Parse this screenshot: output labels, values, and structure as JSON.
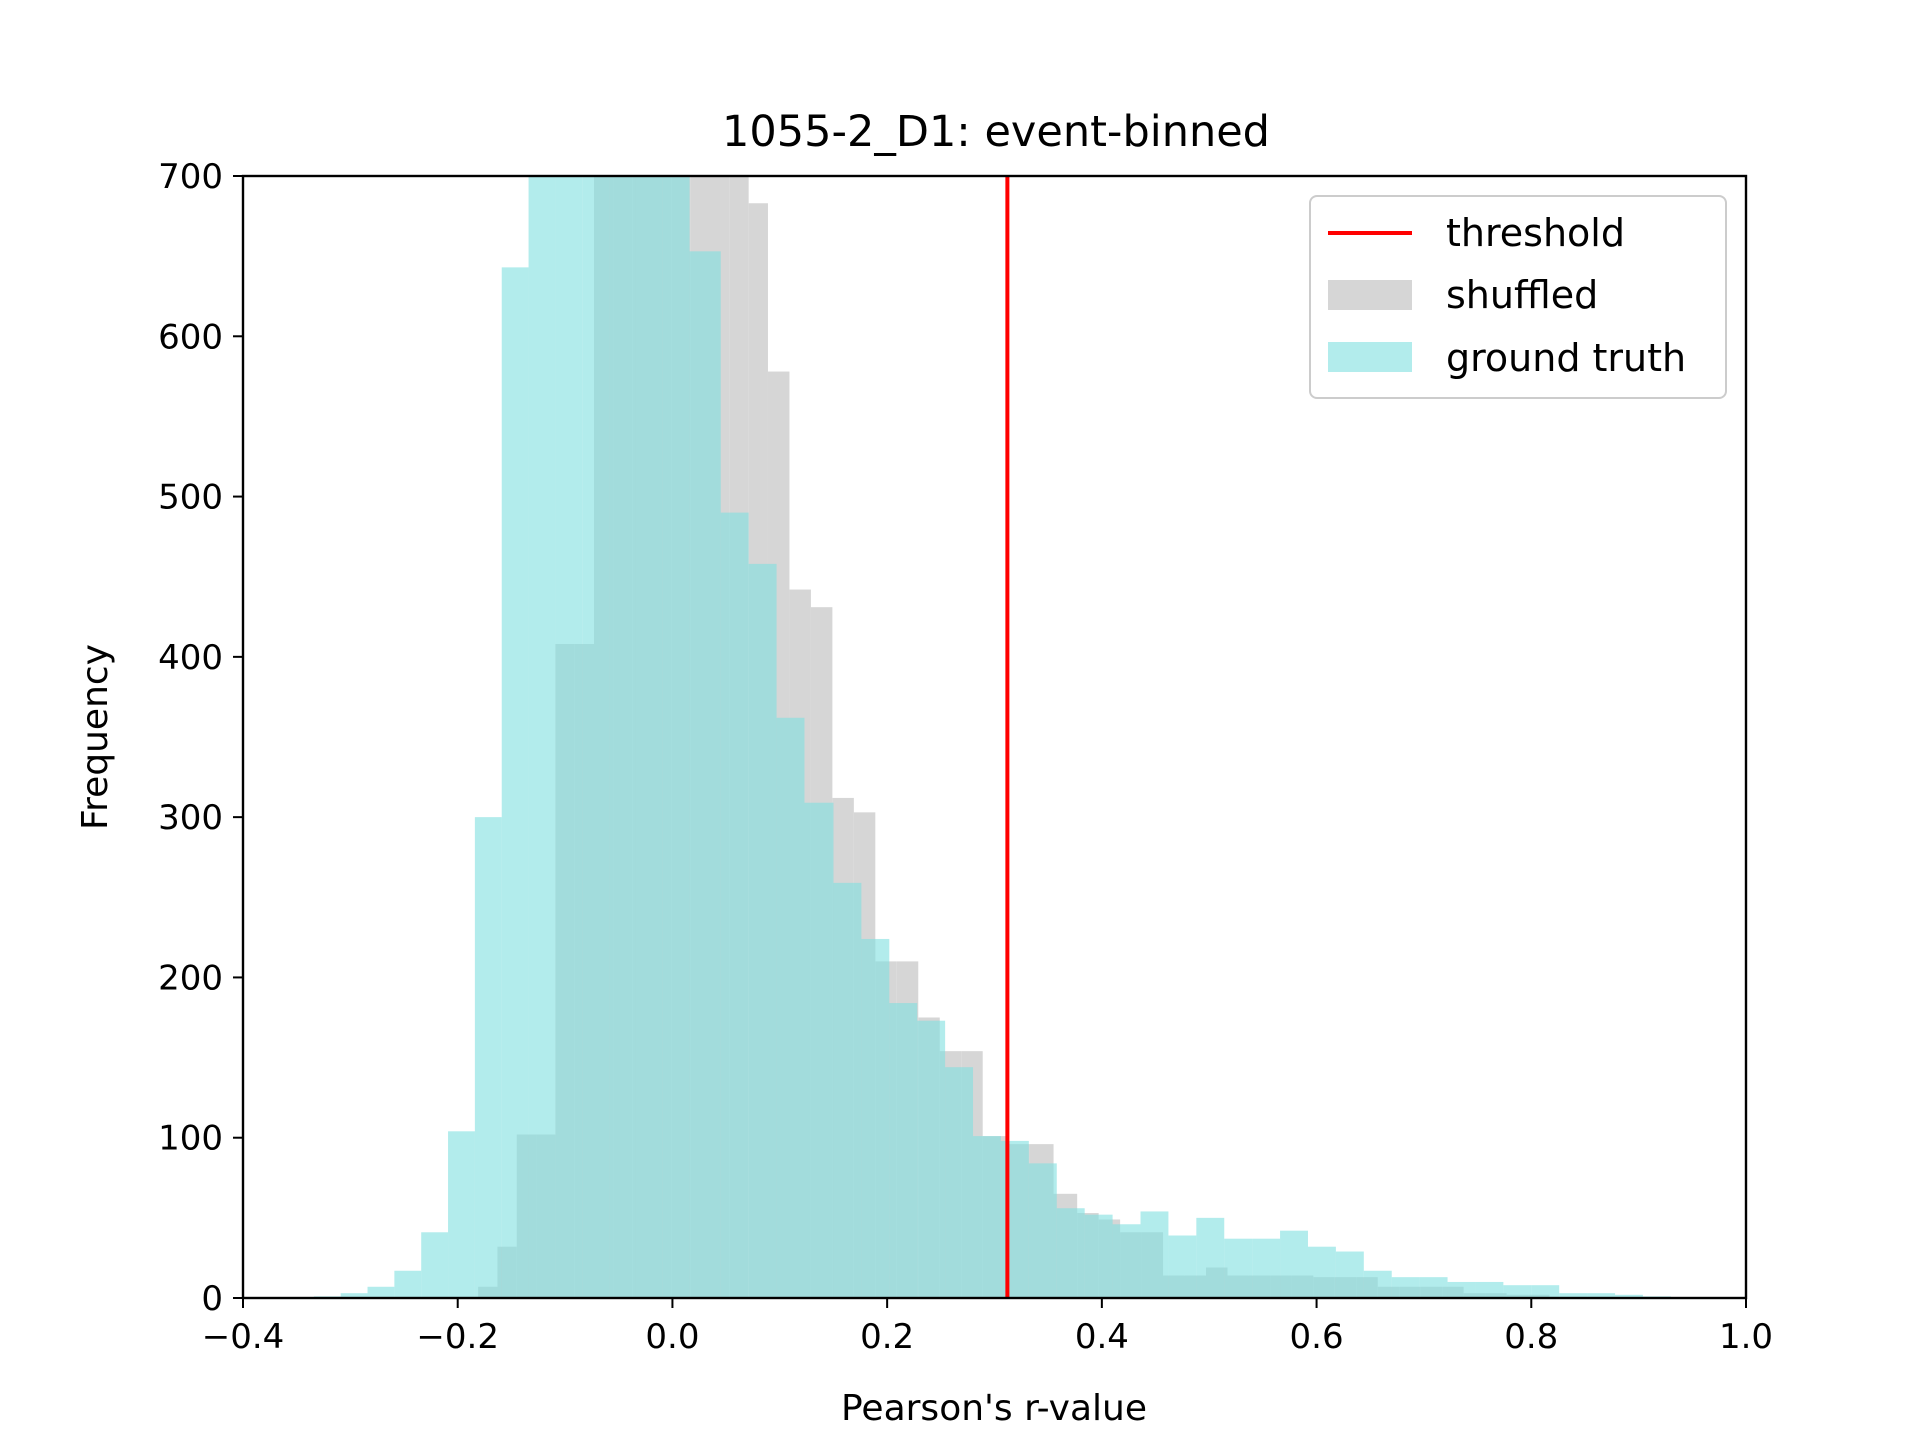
{
  "chart_data": {
    "type": "bar",
    "title": "1055-2_D1: event-binned",
    "xlabel": "Pearson's r-value",
    "ylabel": "Frequency",
    "xlim": [
      -0.4,
      1.0
    ],
    "ylim": [
      0,
      700
    ],
    "xticks": [
      -0.4,
      -0.2,
      0.0,
      0.2,
      0.4,
      0.6,
      0.8,
      1.0
    ],
    "xtick_labels": [
      "−0.4",
      "−0.2",
      "0.0",
      "0.2",
      "0.4",
      "0.6",
      "0.8",
      "1.0"
    ],
    "yticks": [
      0,
      100,
      200,
      300,
      400,
      500,
      600,
      700
    ],
    "ytick_labels": [
      "0",
      "100",
      "200",
      "300",
      "400",
      "500",
      "600",
      "700"
    ],
    "grid": false,
    "legend_position": "top-right",
    "threshold": {
      "name": "threshold",
      "x": 0.312,
      "color": "#ff0000"
    },
    "series": [
      {
        "name": "shuffled",
        "color": "#d6d6d6",
        "bins": [
          {
            "x0": -0.181,
            "x1": -0.163,
            "value": 7
          },
          {
            "x0": -0.163,
            "x1": -0.145,
            "value": 32
          },
          {
            "x0": -0.145,
            "x1": -0.127,
            "value": 102
          },
          {
            "x0": -0.127,
            "x1": -0.109,
            "value": 102
          },
          {
            "x0": -0.109,
            "x1": -0.091,
            "value": 408
          },
          {
            "x0": -0.091,
            "x1": -0.073,
            "value": 408
          },
          {
            "x0": -0.073,
            "x1": -0.055,
            "value": 700
          },
          {
            "x0": -0.055,
            "x1": -0.037,
            "value": 700
          },
          {
            "x0": -0.037,
            "x1": -0.019,
            "value": 700
          },
          {
            "x0": -0.019,
            "x1": -0.001,
            "value": 700
          },
          {
            "x0": -0.001,
            "x1": 0.017,
            "value": 700
          },
          {
            "x0": 0.017,
            "x1": 0.035,
            "value": 700
          },
          {
            "x0": 0.035,
            "x1": 0.053,
            "value": 700
          },
          {
            "x0": 0.053,
            "x1": 0.071,
            "value": 700
          },
          {
            "x0": 0.071,
            "x1": 0.089,
            "value": 683
          },
          {
            "x0": 0.089,
            "x1": 0.109,
            "value": 578
          },
          {
            "x0": 0.109,
            "x1": 0.129,
            "value": 442
          },
          {
            "x0": 0.129,
            "x1": 0.149,
            "value": 431
          },
          {
            "x0": 0.149,
            "x1": 0.169,
            "value": 312
          },
          {
            "x0": 0.169,
            "x1": 0.189,
            "value": 303
          },
          {
            "x0": 0.189,
            "x1": 0.209,
            "value": 210
          },
          {
            "x0": 0.209,
            "x1": 0.229,
            "value": 210
          },
          {
            "x0": 0.229,
            "x1": 0.249,
            "value": 175
          },
          {
            "x0": 0.249,
            "x1": 0.269,
            "value": 154
          },
          {
            "x0": 0.269,
            "x1": 0.289,
            "value": 154
          },
          {
            "x0": 0.289,
            "x1": 0.311,
            "value": 101
          },
          {
            "x0": 0.311,
            "x1": 0.333,
            "value": 96
          },
          {
            "x0": 0.333,
            "x1": 0.355,
            "value": 96
          },
          {
            "x0": 0.355,
            "x1": 0.377,
            "value": 65
          },
          {
            "x0": 0.377,
            "x1": 0.397,
            "value": 53
          },
          {
            "x0": 0.397,
            "x1": 0.417,
            "value": 49
          },
          {
            "x0": 0.417,
            "x1": 0.437,
            "value": 41
          },
          {
            "x0": 0.437,
            "x1": 0.457,
            "value": 41
          },
          {
            "x0": 0.457,
            "x1": 0.477,
            "value": 14
          },
          {
            "x0": 0.477,
            "x1": 0.497,
            "value": 14
          },
          {
            "x0": 0.497,
            "x1": 0.517,
            "value": 19
          },
          {
            "x0": 0.517,
            "x1": 0.537,
            "value": 14
          },
          {
            "x0": 0.537,
            "x1": 0.557,
            "value": 14
          },
          {
            "x0": 0.557,
            "x1": 0.577,
            "value": 14
          },
          {
            "x0": 0.577,
            "x1": 0.597,
            "value": 14
          },
          {
            "x0": 0.597,
            "x1": 0.617,
            "value": 13
          },
          {
            "x0": 0.617,
            "x1": 0.637,
            "value": 13
          },
          {
            "x0": 0.637,
            "x1": 0.657,
            "value": 13
          },
          {
            "x0": 0.657,
            "x1": 0.677,
            "value": 7
          },
          {
            "x0": 0.677,
            "x1": 0.697,
            "value": 7
          },
          {
            "x0": 0.697,
            "x1": 0.717,
            "value": 7
          },
          {
            "x0": 0.717,
            "x1": 0.737,
            "value": 7
          },
          {
            "x0": 0.737,
            "x1": 0.757,
            "value": 3
          },
          {
            "x0": 0.757,
            "x1": 0.777,
            "value": 3
          },
          {
            "x0": 0.777,
            "x1": 0.797,
            "value": 2
          },
          {
            "x0": 0.797,
            "x1": 0.817,
            "value": 2
          }
        ]
      },
      {
        "name": "ground truth",
        "color": "#7fdfdf",
        "bins": [
          {
            "x0": -0.334,
            "x1": -0.309,
            "value": 1
          },
          {
            "x0": -0.309,
            "x1": -0.284,
            "value": 3
          },
          {
            "x0": -0.284,
            "x1": -0.259,
            "value": 7
          },
          {
            "x0": -0.259,
            "x1": -0.234,
            "value": 17
          },
          {
            "x0": -0.234,
            "x1": -0.209,
            "value": 41
          },
          {
            "x0": -0.209,
            "x1": -0.184,
            "value": 104
          },
          {
            "x0": -0.184,
            "x1": -0.159,
            "value": 300
          },
          {
            "x0": -0.159,
            "x1": -0.134,
            "value": 643
          },
          {
            "x0": -0.134,
            "x1": -0.109,
            "value": 700
          },
          {
            "x0": -0.109,
            "x1": -0.084,
            "value": 700
          },
          {
            "x0": -0.084,
            "x1": -0.059,
            "value": 700
          },
          {
            "x0": -0.059,
            "x1": -0.034,
            "value": 700
          },
          {
            "x0": -0.034,
            "x1": -0.009,
            "value": 700
          },
          {
            "x0": -0.009,
            "x1": 0.016,
            "value": 700
          },
          {
            "x0": 0.016,
            "x1": 0.045,
            "value": 653
          },
          {
            "x0": 0.045,
            "x1": 0.071,
            "value": 490
          },
          {
            "x0": 0.071,
            "x1": 0.097,
            "value": 458
          },
          {
            "x0": 0.097,
            "x1": 0.123,
            "value": 362
          },
          {
            "x0": 0.123,
            "x1": 0.15,
            "value": 309
          },
          {
            "x0": 0.15,
            "x1": 0.176,
            "value": 259
          },
          {
            "x0": 0.176,
            "x1": 0.202,
            "value": 224
          },
          {
            "x0": 0.202,
            "x1": 0.228,
            "value": 184
          },
          {
            "x0": 0.228,
            "x1": 0.254,
            "value": 173
          },
          {
            "x0": 0.254,
            "x1": 0.28,
            "value": 144
          },
          {
            "x0": 0.28,
            "x1": 0.306,
            "value": 101
          },
          {
            "x0": 0.306,
            "x1": 0.332,
            "value": 98
          },
          {
            "x0": 0.332,
            "x1": 0.358,
            "value": 84
          },
          {
            "x0": 0.358,
            "x1": 0.384,
            "value": 56
          },
          {
            "x0": 0.384,
            "x1": 0.41,
            "value": 52
          },
          {
            "x0": 0.41,
            "x1": 0.436,
            "value": 46
          },
          {
            "x0": 0.436,
            "x1": 0.462,
            "value": 54
          },
          {
            "x0": 0.462,
            "x1": 0.488,
            "value": 39
          },
          {
            "x0": 0.488,
            "x1": 0.514,
            "value": 50
          },
          {
            "x0": 0.514,
            "x1": 0.54,
            "value": 37
          },
          {
            "x0": 0.54,
            "x1": 0.566,
            "value": 37
          },
          {
            "x0": 0.566,
            "x1": 0.592,
            "value": 42
          },
          {
            "x0": 0.592,
            "x1": 0.618,
            "value": 32
          },
          {
            "x0": 0.618,
            "x1": 0.644,
            "value": 29
          },
          {
            "x0": 0.644,
            "x1": 0.67,
            "value": 17
          },
          {
            "x0": 0.67,
            "x1": 0.696,
            "value": 13
          },
          {
            "x0": 0.696,
            "x1": 0.722,
            "value": 13
          },
          {
            "x0": 0.722,
            "x1": 0.748,
            "value": 10
          },
          {
            "x0": 0.748,
            "x1": 0.774,
            "value": 10
          },
          {
            "x0": 0.774,
            "x1": 0.8,
            "value": 8
          },
          {
            "x0": 0.8,
            "x1": 0.826,
            "value": 8
          },
          {
            "x0": 0.826,
            "x1": 0.852,
            "value": 3
          },
          {
            "x0": 0.852,
            "x1": 0.878,
            "value": 3
          },
          {
            "x0": 0.878,
            "x1": 0.904,
            "value": 2
          },
          {
            "x0": 0.904,
            "x1": 0.93,
            "value": 1
          }
        ]
      }
    ]
  }
}
